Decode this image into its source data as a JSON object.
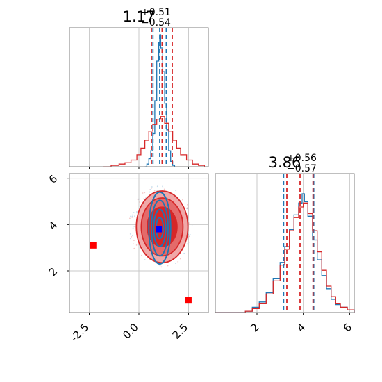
{
  "chart_data": [
    {
      "type": "histogram",
      "panel": "top-left",
      "title": {
        "main": "1.17",
        "sup": "+0.51",
        "sub": "−0.54"
      },
      "xlim": [
        -3.5,
        3.5
      ],
      "grid": true,
      "series": [
        {
          "name": "",
          "color": "#1f77b4",
          "bins": [
            {
              "x": 0.3,
              "y": 0.0
            },
            {
              "x": 0.4,
              "y": 0.02
            },
            {
              "x": 0.5,
              "y": 0.06
            },
            {
              "x": 0.6,
              "y": 0.12
            },
            {
              "x": 0.7,
              "y": 0.25
            },
            {
              "x": 0.8,
              "y": 0.5
            },
            {
              "x": 0.9,
              "y": 0.8
            },
            {
              "x": 1.0,
              "y": 0.94
            },
            {
              "x": 1.05,
              "y": 1.0
            },
            {
              "x": 1.1,
              "y": 0.9
            },
            {
              "x": 1.2,
              "y": 0.72
            },
            {
              "x": 1.3,
              "y": 0.48
            },
            {
              "x": 1.4,
              "y": 0.28
            },
            {
              "x": 1.5,
              "y": 0.12
            },
            {
              "x": 1.6,
              "y": 0.04
            },
            {
              "x": 1.7,
              "y": 0.01
            },
            {
              "x": 1.8,
              "y": 0.0
            }
          ],
          "quantiles": [
            0.71,
            1.05,
            1.38
          ]
        },
        {
          "name": "",
          "color": "#d62728",
          "bins": [
            {
              "x": -1.8,
              "y": 0.0
            },
            {
              "x": -1.4,
              "y": 0.01
            },
            {
              "x": -1.0,
              "y": 0.02
            },
            {
              "x": -0.7,
              "y": 0.03
            },
            {
              "x": -0.4,
              "y": 0.05
            },
            {
              "x": -0.1,
              "y": 0.09
            },
            {
              "x": 0.1,
              "y": 0.14
            },
            {
              "x": 0.3,
              "y": 0.2
            },
            {
              "x": 0.5,
              "y": 0.27
            },
            {
              "x": 0.7,
              "y": 0.32
            },
            {
              "x": 0.9,
              "y": 0.36
            },
            {
              "x": 1.1,
              "y": 0.38
            },
            {
              "x": 1.3,
              "y": 0.33
            },
            {
              "x": 1.5,
              "y": 0.27
            },
            {
              "x": 1.7,
              "y": 0.2
            },
            {
              "x": 1.9,
              "y": 0.14
            },
            {
              "x": 2.1,
              "y": 0.09
            },
            {
              "x": 2.4,
              "y": 0.05
            },
            {
              "x": 2.7,
              "y": 0.02
            },
            {
              "x": 3.0,
              "y": 0.01
            },
            {
              "x": 3.3,
              "y": 0.0
            }
          ],
          "quantiles": [
            0.63,
            1.17,
            1.68
          ]
        }
      ]
    },
    {
      "type": "contour",
      "panel": "bottom-left",
      "xlim": [
        -3.5,
        3.5
      ],
      "ylim": [
        0.2,
        6.2
      ],
      "xticks": [
        "-2.5",
        "0.0",
        "2.5"
      ],
      "yticks": [
        "2",
        "4",
        "6"
      ],
      "grid": true,
      "series": [
        {
          "name": "",
          "color": "#d62728",
          "center": [
            1.17,
            3.9
          ],
          "levels": [
            {
              "rx": 1.3,
              "ry": 1.55
            },
            {
              "rx": 1.05,
              "ry": 1.25
            },
            {
              "rx": 0.75,
              "ry": 0.85
            }
          ]
        },
        {
          "name": "",
          "color": "#1f77b4",
          "center": [
            1.05,
            3.85
          ],
          "levels": [
            {
              "rx": 0.55,
              "ry": 1.55
            },
            {
              "rx": 0.42,
              "ry": 1.2
            },
            {
              "rx": 0.3,
              "ry": 0.8
            },
            {
              "rx": 0.18,
              "ry": 0.45
            }
          ]
        }
      ],
      "markers": [
        {
          "x": -2.3,
          "y": 3.1,
          "color": "#ff0000"
        },
        {
          "x": 2.5,
          "y": 0.75,
          "color": "#ff0000"
        },
        {
          "x": 1.0,
          "y": 3.8,
          "color": "#0000ff"
        }
      ]
    },
    {
      "type": "histogram",
      "panel": "bottom-right",
      "title": {
        "main": "3.86",
        "sup": "+0.56",
        "sub": "−0.57"
      },
      "xlim": [
        0.2,
        6.2
      ],
      "xticks": [
        "2",
        "4",
        "6"
      ],
      "grid": true,
      "series": [
        {
          "name": "",
          "color": "#1f77b4",
          "bins": [
            {
              "x": 0.2,
              "y": 0.0
            },
            {
              "x": 1.5,
              "y": 0.01
            },
            {
              "x": 1.8,
              "y": 0.04
            },
            {
              "x": 2.1,
              "y": 0.08
            },
            {
              "x": 2.4,
              "y": 0.15
            },
            {
              "x": 2.7,
              "y": 0.26
            },
            {
              "x": 3.0,
              "y": 0.38
            },
            {
              "x": 3.2,
              "y": 0.5
            },
            {
              "x": 3.4,
              "y": 0.63
            },
            {
              "x": 3.6,
              "y": 0.74
            },
            {
              "x": 3.8,
              "y": 0.83
            },
            {
              "x": 3.95,
              "y": 0.9
            },
            {
              "x": 4.05,
              "y": 0.84
            },
            {
              "x": 4.2,
              "y": 0.73
            },
            {
              "x": 4.4,
              "y": 0.55
            },
            {
              "x": 4.6,
              "y": 0.4
            },
            {
              "x": 4.8,
              "y": 0.28
            },
            {
              "x": 5.0,
              "y": 0.18
            },
            {
              "x": 5.2,
              "y": 0.1
            },
            {
              "x": 5.4,
              "y": 0.06
            },
            {
              "x": 5.6,
              "y": 0.04
            },
            {
              "x": 5.9,
              "y": 0.02
            },
            {
              "x": 6.2,
              "y": 0.0
            }
          ],
          "quantiles": [
            3.15,
            4.45
          ]
        },
        {
          "name": "",
          "color": "#d62728",
          "bins": [
            {
              "x": 0.2,
              "y": 0.0
            },
            {
              "x": 1.5,
              "y": 0.01
            },
            {
              "x": 1.8,
              "y": 0.03
            },
            {
              "x": 2.1,
              "y": 0.07
            },
            {
              "x": 2.4,
              "y": 0.14
            },
            {
              "x": 2.7,
              "y": 0.24
            },
            {
              "x": 3.0,
              "y": 0.36
            },
            {
              "x": 3.2,
              "y": 0.48
            },
            {
              "x": 3.4,
              "y": 0.62
            },
            {
              "x": 3.6,
              "y": 0.72
            },
            {
              "x": 3.8,
              "y": 0.8
            },
            {
              "x": 4.0,
              "y": 0.83
            },
            {
              "x": 4.2,
              "y": 0.75
            },
            {
              "x": 4.4,
              "y": 0.62
            },
            {
              "x": 4.6,
              "y": 0.46
            },
            {
              "x": 4.8,
              "y": 0.32
            },
            {
              "x": 5.0,
              "y": 0.2
            },
            {
              "x": 5.2,
              "y": 0.12
            },
            {
              "x": 5.4,
              "y": 0.07
            },
            {
              "x": 5.6,
              "y": 0.04
            },
            {
              "x": 5.9,
              "y": 0.02
            },
            {
              "x": 6.2,
              "y": 0.0
            }
          ],
          "quantiles": [
            3.29,
            3.86,
            4.42
          ]
        }
      ]
    }
  ]
}
